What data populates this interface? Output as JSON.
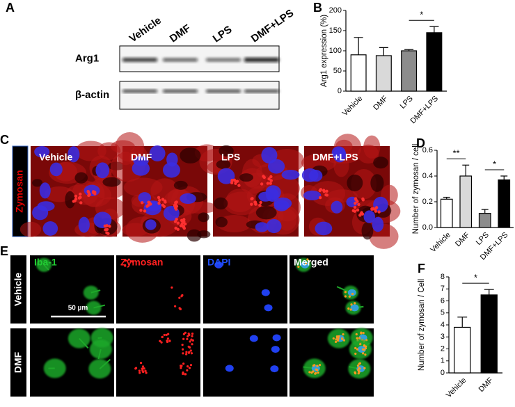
{
  "panel_labels": [
    "A",
    "B",
    "C",
    "D",
    "E",
    "F"
  ],
  "blot": {
    "columns": [
      "Vehicle",
      "DMF",
      "LPS",
      "DMF+LPS"
    ],
    "rows": [
      "Arg1",
      "β-actin"
    ]
  },
  "panel_c": {
    "stain": "Zymosan",
    "conditions": [
      "Vehicle",
      "DMF",
      "LPS",
      "DMF+LPS"
    ]
  },
  "panel_e": {
    "rows": [
      "Vehicle",
      "DMF"
    ],
    "channels": [
      "Iba-1",
      "Zymosan",
      "DAPI",
      "Merged"
    ],
    "scale_bar": "50 µm"
  },
  "chart_data": [
    {
      "type": "bar",
      "ylabel": "Arg1 expression (%)",
      "categories": [
        "Vehicle",
        "DMF",
        "LPS",
        "DMF+LPS"
      ],
      "values": [
        90,
        88,
        100,
        145
      ],
      "errors": [
        43,
        20,
        3,
        15
      ],
      "colors": [
        "#ffffff",
        "#d9d9d9",
        "#8c8c8c",
        "#000000"
      ],
      "ylim": [
        0,
        200
      ],
      "yticks": [
        0,
        50,
        100,
        150,
        200
      ],
      "significance": [
        "*"
      ]
    },
    {
      "type": "bar",
      "ylabel": "Number of zymosan / cell",
      "categories": [
        "Vehicle",
        "DMF",
        "LPS",
        "DMF+LPS"
      ],
      "values": [
        0.22,
        0.4,
        0.11,
        0.37
      ],
      "errors": [
        0.015,
        0.085,
        0.03,
        0.03
      ],
      "colors": [
        "#ffffff",
        "#d9d9d9",
        "#8c8c8c",
        "#000000"
      ],
      "ylim": [
        0,
        0.6
      ],
      "yticks": [
        {
          "value": 0,
          "label": "0.0"
        },
        0.2,
        0.4,
        0.6
      ],
      "significance": [
        "**",
        "*"
      ]
    },
    {
      "type": "bar",
      "ylabel": "Number of zymosan / Cell",
      "categories": [
        "Vehicle",
        "DMF"
      ],
      "values": [
        3.8,
        6.5
      ],
      "errors": [
        0.85,
        0.45
      ],
      "colors": [
        "#ffffff",
        "#000000"
      ],
      "ylim": [
        0,
        8
      ],
      "yticks": [
        0,
        1,
        2,
        3,
        4,
        5,
        6,
        7,
        8
      ],
      "significance": [
        "*"
      ]
    }
  ]
}
